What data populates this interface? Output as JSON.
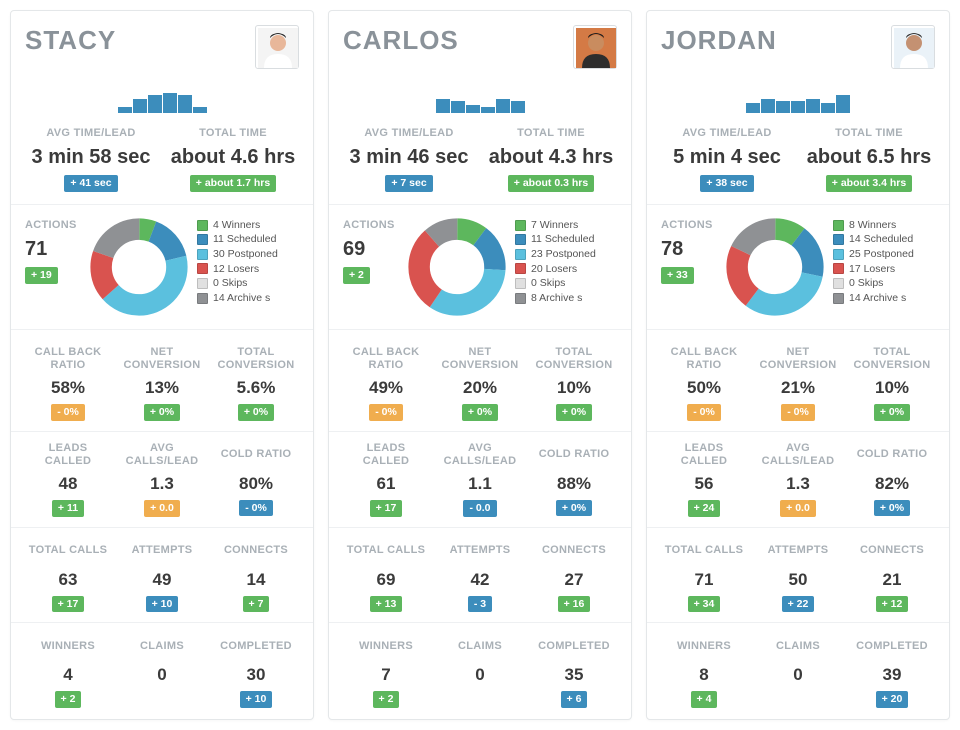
{
  "colors": {
    "badge_green": "#5db75d",
    "badge_blue": "#3c8dbc",
    "badge_orange": "#f0ad4e",
    "label_gray": "#a9b0b6",
    "name_gray": "#8a9299",
    "spark": "#3c8dbc"
  },
  "donut_palette": {
    "winners": "#5db75d",
    "scheduled": "#3c8dbc",
    "postponed": "#5bc0de",
    "losers": "#d9534f",
    "skips": "#e0e0e0",
    "archive": "#8f9194"
  },
  "labels": {
    "avg_time_lead": "AVG TIME/LEAD",
    "total_time": "TOTAL TIME",
    "actions": "ACTIONS",
    "call_back_ratio": "CALL BACK RATIO",
    "net_conversion": "NET CONVERSION",
    "total_conversion": "TOTAL CONVERSION",
    "leads_called": "LEADS CALLED",
    "avg_calls_lead": "AVG CALLS/LEAD",
    "cold_ratio": "COLD RATIO",
    "total_calls": "TOTAL CALLS",
    "attempts": "ATTEMPTS",
    "connects": "CONNECTS",
    "winners": "WINNERS",
    "claims": "CLAIMS",
    "completed": "COMPLETED"
  },
  "legend_labels": {
    "winners": "Winners",
    "scheduled": "Scheduled",
    "postponed": "Postponed",
    "losers": "Losers",
    "skips": "Skips",
    "archive": "Archive s"
  },
  "cards": [
    {
      "name": "STACY",
      "avatar": {
        "skin": "#e8b79a",
        "hair": "#2b2b2b",
        "shirt": "#ffffff",
        "bg": "#f4f4f4"
      },
      "spark": [
        6,
        14,
        18,
        20,
        18,
        6
      ],
      "avg_time_lead": {
        "value": "3 min 58 sec",
        "delta": "+ 41 sec",
        "delta_color": "blue"
      },
      "total_time": {
        "value": "about 4.6 hrs",
        "delta": "+ about 1.7 hrs",
        "delta_color": "green"
      },
      "actions": {
        "value": "71",
        "delta": "+ 19",
        "delta_color": "green"
      },
      "donut": {
        "winners": 4,
        "scheduled": 11,
        "postponed": 30,
        "losers": 12,
        "skips": 0,
        "archive": 14
      },
      "metrics": {
        "call_back_ratio": {
          "value": "58%",
          "delta": "- 0%",
          "delta_color": "orange"
        },
        "net_conversion": {
          "value": "13%",
          "delta": "+ 0%",
          "delta_color": "green"
        },
        "total_conversion": {
          "value": "5.6%",
          "delta": "+ 0%",
          "delta_color": "green"
        },
        "leads_called": {
          "value": "48",
          "delta": "+ 11",
          "delta_color": "green"
        },
        "avg_calls_lead": {
          "value": "1.3",
          "delta": "+ 0.0",
          "delta_color": "orange"
        },
        "cold_ratio": {
          "value": "80%",
          "delta": "- 0%",
          "delta_color": "blue"
        },
        "total_calls": {
          "value": "63",
          "delta": "+ 17",
          "delta_color": "green"
        },
        "attempts": {
          "value": "49",
          "delta": "+ 10",
          "delta_color": "blue"
        },
        "connects": {
          "value": "14",
          "delta": "+ 7",
          "delta_color": "green"
        },
        "winners": {
          "value": "4",
          "delta": "+ 2",
          "delta_color": "green"
        },
        "claims": {
          "value": "0"
        },
        "completed": {
          "value": "30",
          "delta": "+ 10",
          "delta_color": "blue"
        }
      }
    },
    {
      "name": "CARLOS",
      "avatar": {
        "skin": "#c98c5f",
        "hair": "#1e1e1e",
        "shirt": "#2d2d2d",
        "bg": "#d47a45"
      },
      "spark": [
        14,
        12,
        8,
        6,
        14,
        12
      ],
      "avg_time_lead": {
        "value": "3 min 46 sec",
        "delta": "+ 7 sec",
        "delta_color": "blue"
      },
      "total_time": {
        "value": "about 4.3 hrs",
        "delta": "+ about 0.3 hrs",
        "delta_color": "green"
      },
      "actions": {
        "value": "69",
        "delta": "+ 2",
        "delta_color": "green"
      },
      "donut": {
        "winners": 7,
        "scheduled": 11,
        "postponed": 23,
        "losers": 20,
        "skips": 0,
        "archive": 8
      },
      "metrics": {
        "call_back_ratio": {
          "value": "49%",
          "delta": "- 0%",
          "delta_color": "orange"
        },
        "net_conversion": {
          "value": "20%",
          "delta": "+ 0%",
          "delta_color": "green"
        },
        "total_conversion": {
          "value": "10%",
          "delta": "+ 0%",
          "delta_color": "green"
        },
        "leads_called": {
          "value": "61",
          "delta": "+ 17",
          "delta_color": "green"
        },
        "avg_calls_lead": {
          "value": "1.1",
          "delta": "- 0.0",
          "delta_color": "blue"
        },
        "cold_ratio": {
          "value": "88%",
          "delta": "+ 0%",
          "delta_color": "blue"
        },
        "total_calls": {
          "value": "69",
          "delta": "+ 13",
          "delta_color": "green"
        },
        "attempts": {
          "value": "42",
          "delta": "- 3",
          "delta_color": "blue"
        },
        "connects": {
          "value": "27",
          "delta": "+ 16",
          "delta_color": "green"
        },
        "winners": {
          "value": "7",
          "delta": "+ 2",
          "delta_color": "green"
        },
        "claims": {
          "value": "0"
        },
        "completed": {
          "value": "35",
          "delta": "+ 6",
          "delta_color": "blue"
        }
      }
    },
    {
      "name": "JORDAN",
      "avatar": {
        "skin": "#c49172",
        "hair": "#333333",
        "shirt": "#ffffff",
        "bg": "#eaf2f8"
      },
      "spark": [
        10,
        14,
        12,
        12,
        14,
        10,
        18
      ],
      "avg_time_lead": {
        "value": "5 min 4 sec",
        "delta": "+ 38 sec",
        "delta_color": "blue"
      },
      "total_time": {
        "value": "about 6.5 hrs",
        "delta": "+ about 3.4 hrs",
        "delta_color": "green"
      },
      "actions": {
        "value": "78",
        "delta": "+ 33",
        "delta_color": "green"
      },
      "donut": {
        "winners": 8,
        "scheduled": 14,
        "postponed": 25,
        "losers": 17,
        "skips": 0,
        "archive": 14
      },
      "metrics": {
        "call_back_ratio": {
          "value": "50%",
          "delta": "- 0%",
          "delta_color": "orange"
        },
        "net_conversion": {
          "value": "21%",
          "delta": "- 0%",
          "delta_color": "orange"
        },
        "total_conversion": {
          "value": "10%",
          "delta": "+ 0%",
          "delta_color": "green"
        },
        "leads_called": {
          "value": "56",
          "delta": "+ 24",
          "delta_color": "green"
        },
        "avg_calls_lead": {
          "value": "1.3",
          "delta": "+ 0.0",
          "delta_color": "orange"
        },
        "cold_ratio": {
          "value": "82%",
          "delta": "+ 0%",
          "delta_color": "blue"
        },
        "total_calls": {
          "value": "71",
          "delta": "+ 34",
          "delta_color": "green"
        },
        "attempts": {
          "value": "50",
          "delta": "+ 22",
          "delta_color": "blue"
        },
        "connects": {
          "value": "21",
          "delta": "+ 12",
          "delta_color": "green"
        },
        "winners": {
          "value": "8",
          "delta": "+ 4",
          "delta_color": "green"
        },
        "claims": {
          "value": "0"
        },
        "completed": {
          "value": "39",
          "delta": "+ 20",
          "delta_color": "blue"
        }
      }
    }
  ]
}
